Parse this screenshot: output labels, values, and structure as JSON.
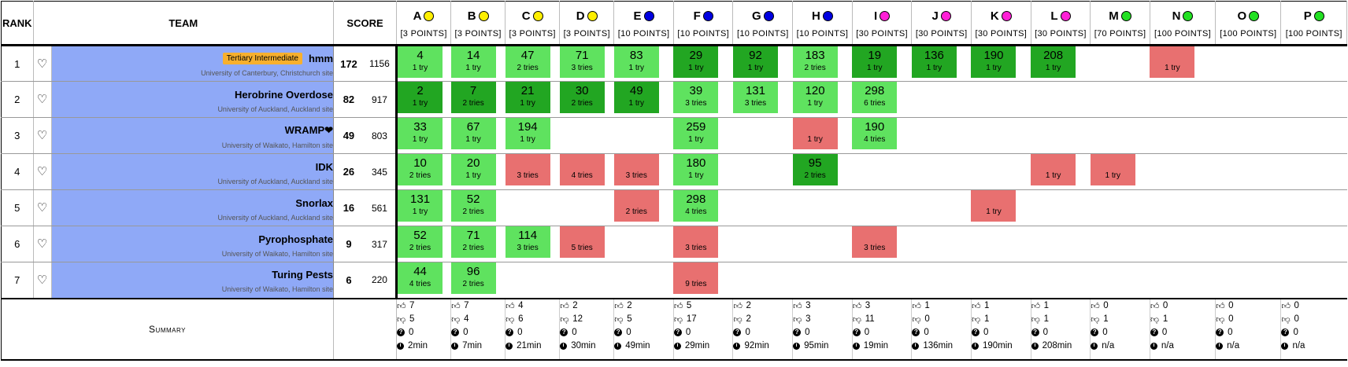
{
  "header": {
    "rank_label": "RANK",
    "team_label": "TEAM",
    "score_label": "SCORE"
  },
  "problems": [
    {
      "letter": "A",
      "points": "[3 POINTS]",
      "color": "#ffef00"
    },
    {
      "letter": "B",
      "points": "[3 POINTS]",
      "color": "#ffef00"
    },
    {
      "letter": "C",
      "points": "[3 POINTS]",
      "color": "#ffef00"
    },
    {
      "letter": "D",
      "points": "[3 POINTS]",
      "color": "#ffef00"
    },
    {
      "letter": "E",
      "points": "[10 POINTS]",
      "color": "#0000e0"
    },
    {
      "letter": "F",
      "points": "[10 POINTS]",
      "color": "#0000e0"
    },
    {
      "letter": "G",
      "points": "[10 POINTS]",
      "color": "#0000e0"
    },
    {
      "letter": "H",
      "points": "[10 POINTS]",
      "color": "#0000e0"
    },
    {
      "letter": "I",
      "points": "[30 POINTS]",
      "color": "#ff1fd6"
    },
    {
      "letter": "J",
      "points": "[30 POINTS]",
      "color": "#ff1fd6"
    },
    {
      "letter": "K",
      "points": "[30 POINTS]",
      "color": "#ff1fd6"
    },
    {
      "letter": "L",
      "points": "[30 POINTS]",
      "color": "#ff1fd6"
    },
    {
      "letter": "M",
      "points": "[70 POINTS]",
      "color": "#22e022"
    },
    {
      "letter": "N",
      "points": "[100 POINTS]",
      "color": "#22e022"
    },
    {
      "letter": "O",
      "points": "[100 POINTS]",
      "color": "#22e022"
    },
    {
      "letter": "P",
      "points": "[100 POINTS]",
      "color": "#22e022"
    }
  ],
  "teams": [
    {
      "rank": "1",
      "name": "hmm",
      "tag": "Tertiary Intermediate",
      "affiliation": "University of Canterbury, Christchurch site",
      "score": "172",
      "penalty": "1156",
      "cells": [
        {
          "s": "solved",
          "t": "4",
          "n": "1 try"
        },
        {
          "s": "solved",
          "t": "14",
          "n": "1 try"
        },
        {
          "s": "solved",
          "t": "47",
          "n": "2 tries"
        },
        {
          "s": "solved",
          "t": "71",
          "n": "3 tries"
        },
        {
          "s": "solved",
          "t": "83",
          "n": "1 try"
        },
        {
          "s": "first",
          "t": "29",
          "n": "1 try"
        },
        {
          "s": "first",
          "t": "92",
          "n": "1 try"
        },
        {
          "s": "solved",
          "t": "183",
          "n": "2 tries"
        },
        {
          "s": "first",
          "t": "19",
          "n": "1 try"
        },
        {
          "s": "first",
          "t": "136",
          "n": "1 try"
        },
        {
          "s": "first",
          "t": "190",
          "n": "1 try"
        },
        {
          "s": "first",
          "t": "208",
          "n": "1 try"
        },
        {
          "s": "none",
          "t": "",
          "n": ""
        },
        {
          "s": "fail",
          "t": "",
          "n": "1 try"
        },
        {
          "s": "none",
          "t": "",
          "n": ""
        },
        {
          "s": "none",
          "t": "",
          "n": ""
        }
      ]
    },
    {
      "rank": "2",
      "name": "Herobrine Overdose",
      "tag": "",
      "affiliation": "University of Auckland, Auckland site",
      "score": "82",
      "penalty": "917",
      "cells": [
        {
          "s": "first",
          "t": "2",
          "n": "1 try"
        },
        {
          "s": "first",
          "t": "7",
          "n": "2 tries"
        },
        {
          "s": "first",
          "t": "21",
          "n": "1 try"
        },
        {
          "s": "first",
          "t": "30",
          "n": "2 tries"
        },
        {
          "s": "first",
          "t": "49",
          "n": "1 try"
        },
        {
          "s": "solved",
          "t": "39",
          "n": "3 tries"
        },
        {
          "s": "solved",
          "t": "131",
          "n": "3 tries"
        },
        {
          "s": "solved",
          "t": "120",
          "n": "1 try"
        },
        {
          "s": "solved",
          "t": "298",
          "n": "6 tries"
        },
        {
          "s": "none",
          "t": "",
          "n": ""
        },
        {
          "s": "none",
          "t": "",
          "n": ""
        },
        {
          "s": "none",
          "t": "",
          "n": ""
        },
        {
          "s": "none",
          "t": "",
          "n": ""
        },
        {
          "s": "none",
          "t": "",
          "n": ""
        },
        {
          "s": "none",
          "t": "",
          "n": ""
        },
        {
          "s": "none",
          "t": "",
          "n": ""
        }
      ]
    },
    {
      "rank": "3",
      "name": "WRAMP❤",
      "tag": "",
      "affiliation": "University of Waikato, Hamilton site",
      "score": "49",
      "penalty": "803",
      "cells": [
        {
          "s": "solved",
          "t": "33",
          "n": "1 try"
        },
        {
          "s": "solved",
          "t": "67",
          "n": "1 try"
        },
        {
          "s": "solved",
          "t": "194",
          "n": "1 try"
        },
        {
          "s": "none",
          "t": "",
          "n": ""
        },
        {
          "s": "none",
          "t": "",
          "n": ""
        },
        {
          "s": "solved",
          "t": "259",
          "n": "1 try"
        },
        {
          "s": "none",
          "t": "",
          "n": ""
        },
        {
          "s": "fail",
          "t": "",
          "n": "1 try"
        },
        {
          "s": "solved",
          "t": "190",
          "n": "4 tries"
        },
        {
          "s": "none",
          "t": "",
          "n": ""
        },
        {
          "s": "none",
          "t": "",
          "n": ""
        },
        {
          "s": "none",
          "t": "",
          "n": ""
        },
        {
          "s": "none",
          "t": "",
          "n": ""
        },
        {
          "s": "none",
          "t": "",
          "n": ""
        },
        {
          "s": "none",
          "t": "",
          "n": ""
        },
        {
          "s": "none",
          "t": "",
          "n": ""
        }
      ]
    },
    {
      "rank": "4",
      "name": "IDK",
      "tag": "",
      "affiliation": "University of Auckland, Auckland site",
      "score": "26",
      "penalty": "345",
      "cells": [
        {
          "s": "solved",
          "t": "10",
          "n": "2 tries"
        },
        {
          "s": "solved",
          "t": "20",
          "n": "1 try"
        },
        {
          "s": "fail",
          "t": "",
          "n": "3 tries"
        },
        {
          "s": "fail",
          "t": "",
          "n": "4 tries"
        },
        {
          "s": "fail",
          "t": "",
          "n": "3 tries"
        },
        {
          "s": "solved",
          "t": "180",
          "n": "1 try"
        },
        {
          "s": "none",
          "t": "",
          "n": ""
        },
        {
          "s": "first",
          "t": "95",
          "n": "2 tries"
        },
        {
          "s": "none",
          "t": "",
          "n": ""
        },
        {
          "s": "none",
          "t": "",
          "n": ""
        },
        {
          "s": "none",
          "t": "",
          "n": ""
        },
        {
          "s": "fail",
          "t": "",
          "n": "1 try"
        },
        {
          "s": "fail",
          "t": "",
          "n": "1 try"
        },
        {
          "s": "none",
          "t": "",
          "n": ""
        },
        {
          "s": "none",
          "t": "",
          "n": ""
        },
        {
          "s": "none",
          "t": "",
          "n": ""
        }
      ]
    },
    {
      "rank": "5",
      "name": "Snorlax",
      "tag": "",
      "affiliation": "University of Auckland, Auckland site",
      "score": "16",
      "penalty": "561",
      "cells": [
        {
          "s": "solved",
          "t": "131",
          "n": "1 try"
        },
        {
          "s": "solved",
          "t": "52",
          "n": "2 tries"
        },
        {
          "s": "none",
          "t": "",
          "n": ""
        },
        {
          "s": "none",
          "t": "",
          "n": ""
        },
        {
          "s": "fail",
          "t": "",
          "n": "2 tries"
        },
        {
          "s": "solved",
          "t": "298",
          "n": "4 tries"
        },
        {
          "s": "none",
          "t": "",
          "n": ""
        },
        {
          "s": "none",
          "t": "",
          "n": ""
        },
        {
          "s": "none",
          "t": "",
          "n": ""
        },
        {
          "s": "none",
          "t": "",
          "n": ""
        },
        {
          "s": "fail",
          "t": "",
          "n": "1 try"
        },
        {
          "s": "none",
          "t": "",
          "n": ""
        },
        {
          "s": "none",
          "t": "",
          "n": ""
        },
        {
          "s": "none",
          "t": "",
          "n": ""
        },
        {
          "s": "none",
          "t": "",
          "n": ""
        },
        {
          "s": "none",
          "t": "",
          "n": ""
        }
      ]
    },
    {
      "rank": "6",
      "name": "Pyrophosphate",
      "tag": "",
      "affiliation": "University of Waikato, Hamilton site",
      "score": "9",
      "penalty": "317",
      "cells": [
        {
          "s": "solved",
          "t": "52",
          "n": "2 tries"
        },
        {
          "s": "solved",
          "t": "71",
          "n": "2 tries"
        },
        {
          "s": "solved",
          "t": "114",
          "n": "3 tries"
        },
        {
          "s": "fail",
          "t": "",
          "n": "5 tries"
        },
        {
          "s": "none",
          "t": "",
          "n": ""
        },
        {
          "s": "fail",
          "t": "",
          "n": "3 tries"
        },
        {
          "s": "none",
          "t": "",
          "n": ""
        },
        {
          "s": "none",
          "t": "",
          "n": ""
        },
        {
          "s": "fail",
          "t": "",
          "n": "3 tries"
        },
        {
          "s": "none",
          "t": "",
          "n": ""
        },
        {
          "s": "none",
          "t": "",
          "n": ""
        },
        {
          "s": "none",
          "t": "",
          "n": ""
        },
        {
          "s": "none",
          "t": "",
          "n": ""
        },
        {
          "s": "none",
          "t": "",
          "n": ""
        },
        {
          "s": "none",
          "t": "",
          "n": ""
        },
        {
          "s": "none",
          "t": "",
          "n": ""
        }
      ]
    },
    {
      "rank": "7",
      "name": "Turing Pests",
      "tag": "",
      "affiliation": "University of Waikato, Hamilton site",
      "score": "6",
      "penalty": "220",
      "cells": [
        {
          "s": "solved",
          "t": "44",
          "n": "4 tries"
        },
        {
          "s": "solved",
          "t": "96",
          "n": "2 tries"
        },
        {
          "s": "none",
          "t": "",
          "n": ""
        },
        {
          "s": "none",
          "t": "",
          "n": ""
        },
        {
          "s": "none",
          "t": "",
          "n": ""
        },
        {
          "s": "fail",
          "t": "",
          "n": "9 tries"
        },
        {
          "s": "none",
          "t": "",
          "n": ""
        },
        {
          "s": "none",
          "t": "",
          "n": ""
        },
        {
          "s": "none",
          "t": "",
          "n": ""
        },
        {
          "s": "none",
          "t": "",
          "n": ""
        },
        {
          "s": "none",
          "t": "",
          "n": ""
        },
        {
          "s": "none",
          "t": "",
          "n": ""
        },
        {
          "s": "none",
          "t": "",
          "n": ""
        },
        {
          "s": "none",
          "t": "",
          "n": ""
        },
        {
          "s": "none",
          "t": "",
          "n": ""
        },
        {
          "s": "none",
          "t": "",
          "n": ""
        }
      ]
    }
  ],
  "summary": {
    "label": "Summary",
    "stats": [
      {
        "up": "7",
        "down": "5",
        "pending": "0",
        "first": "2min"
      },
      {
        "up": "7",
        "down": "4",
        "pending": "0",
        "first": "7min"
      },
      {
        "up": "4",
        "down": "6",
        "pending": "0",
        "first": "21min"
      },
      {
        "up": "2",
        "down": "12",
        "pending": "0",
        "first": "30min"
      },
      {
        "up": "2",
        "down": "5",
        "pending": "0",
        "first": "49min"
      },
      {
        "up": "5",
        "down": "17",
        "pending": "0",
        "first": "29min"
      },
      {
        "up": "2",
        "down": "2",
        "pending": "0",
        "first": "92min"
      },
      {
        "up": "3",
        "down": "3",
        "pending": "0",
        "first": "95min"
      },
      {
        "up": "3",
        "down": "11",
        "pending": "0",
        "first": "19min"
      },
      {
        "up": "1",
        "down": "0",
        "pending": "0",
        "first": "136min"
      },
      {
        "up": "1",
        "down": "1",
        "pending": "0",
        "first": "190min"
      },
      {
        "up": "1",
        "down": "1",
        "pending": "0",
        "first": "208min"
      },
      {
        "up": "0",
        "down": "1",
        "pending": "0",
        "first": "n/a"
      },
      {
        "up": "0",
        "down": "1",
        "pending": "0",
        "first": "n/a"
      },
      {
        "up": "0",
        "down": "0",
        "pending": "0",
        "first": "n/a"
      },
      {
        "up": "0",
        "down": "0",
        "pending": "0",
        "first": "n/a"
      }
    ]
  },
  "icons": {
    "favorite": "heart-outline-icon",
    "correct": "thumbs-up-icon",
    "rejected": "thumbs-down-icon",
    "pending": "question-circle-icon",
    "first_solve": "clock-icon"
  },
  "colors": {
    "solved": "#5fe25f",
    "solved_first": "#22a622",
    "failed": "#e87070",
    "team_background": "#8fa9f7",
    "category_tag": "#f7b02e"
  }
}
